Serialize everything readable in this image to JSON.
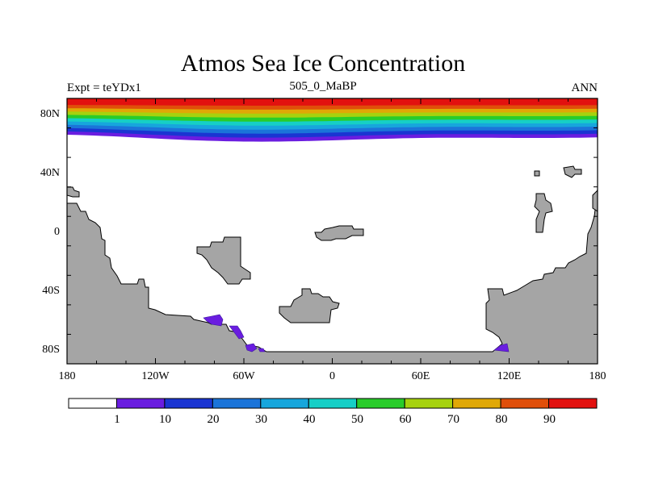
{
  "plot": {
    "title": "Atmos Sea Ice Concentration",
    "left_label": "Expt = teYDx1",
    "center_label": "505_0_MaBP",
    "right_label": "ANN"
  },
  "axes": {
    "lon_ticks": [
      "180",
      "120W",
      "60W",
      "0",
      "60E",
      "120E",
      "180"
    ],
    "lat_ticks": [
      "80N",
      "40N",
      "0",
      "40S",
      "80S"
    ],
    "lon_range": [
      -180,
      180
    ],
    "lat_range": [
      -90,
      90
    ]
  },
  "colorbar": {
    "labels": [
      "1",
      "10",
      "20",
      "30",
      "40",
      "50",
      "60",
      "70",
      "80",
      "90"
    ],
    "colors": [
      "#ffffff",
      "#6a1de0",
      "#1a35d2",
      "#1b74d9",
      "#17a6dc",
      "#16cfc6",
      "#29cc2a",
      "#a6d20e",
      "#e0a806",
      "#e04f0a",
      "#e2110f"
    ]
  },
  "colors": {
    "land": "#a5a5a5",
    "coastline": "#000000",
    "ice_edge": "#6a1de0"
  }
}
